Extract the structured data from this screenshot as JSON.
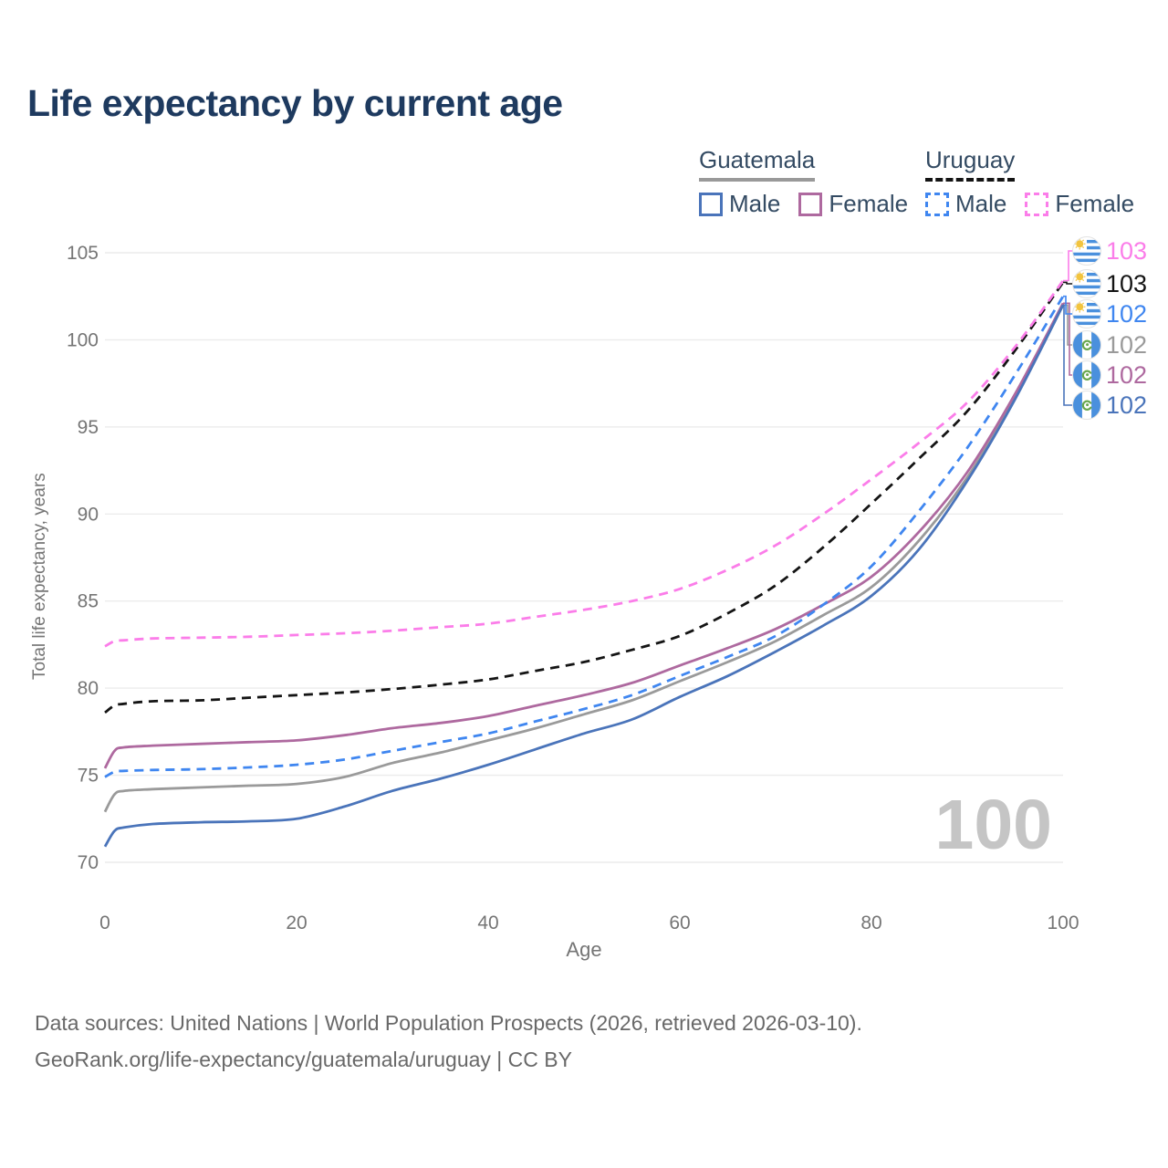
{
  "title": "Life expectancy by current age",
  "watermark": "100",
  "legend": {
    "groups": [
      {
        "label": "Guatemala",
        "underline_style": "solid",
        "underline_color": "#999999",
        "items": [
          {
            "label": "Male",
            "color": "#4a74ba",
            "dash": false
          },
          {
            "label": "Female",
            "color": "#ae699f",
            "dash": false
          }
        ]
      },
      {
        "label": "Uruguay",
        "underline_style": "dashed",
        "underline_color": "#141414",
        "items": [
          {
            "label": "Male",
            "color": "#3f86f0",
            "dash": true
          },
          {
            "label": "Female",
            "color": "#fb7de9",
            "dash": true
          }
        ]
      }
    ]
  },
  "footer": {
    "line1": "Data sources: United Nations | World Population Prospects (2026, retrieved 2026-03-10).",
    "line2": "GeoRank.org/life-expectancy/guatemala/uruguay | CC BY"
  },
  "chart_data": {
    "type": "line",
    "title": "Life expectancy by current age",
    "xlabel": "Age",
    "ylabel": "Total life expectancy, years",
    "xlim": [
      0,
      100
    ],
    "ylim": [
      70,
      105
    ],
    "x_ticks": [
      0,
      20,
      40,
      60,
      80,
      100
    ],
    "y_ticks": [
      70,
      75,
      80,
      85,
      90,
      95,
      100,
      105
    ],
    "grid": "horizontal",
    "legend_position": "top-right",
    "ages": [
      0,
      1,
      2,
      5,
      10,
      15,
      20,
      25,
      30,
      35,
      40,
      45,
      50,
      55,
      60,
      65,
      70,
      75,
      80,
      85,
      90,
      95,
      100
    ],
    "series": [
      {
        "name": "Guatemala (both sexes)",
        "country": "Guatemala",
        "sex": "both",
        "color": "#9a9a9a",
        "dash": "solid",
        "flag": "guatemala",
        "end_label": "102",
        "label_row": 3,
        "values": [
          72.9,
          73.9,
          74.1,
          74.2,
          74.3,
          74.4,
          74.5,
          74.9,
          75.7,
          76.3,
          77.0,
          77.7,
          78.5,
          79.3,
          80.4,
          81.5,
          82.7,
          84.2,
          85.8,
          88.5,
          92.1,
          96.7,
          102.0
        ]
      },
      {
        "name": "Guatemala Female",
        "country": "Guatemala",
        "sex": "female",
        "color": "#ae699f",
        "dash": "solid",
        "flag": "guatemala",
        "end_label": "102",
        "label_row": 4,
        "values": [
          75.4,
          76.4,
          76.6,
          76.7,
          76.8,
          76.9,
          77.0,
          77.3,
          77.7,
          78.0,
          78.4,
          79.0,
          79.6,
          80.3,
          81.3,
          82.3,
          83.4,
          84.8,
          86.4,
          89.0,
          92.4,
          96.9,
          102.1
        ]
      },
      {
        "name": "Guatemala Male",
        "country": "Guatemala",
        "sex": "male",
        "color": "#4a74ba",
        "dash": "solid",
        "flag": "guatemala",
        "end_label": "102",
        "label_row": 5,
        "values": [
          70.9,
          71.8,
          72.0,
          72.2,
          72.3,
          72.35,
          72.5,
          73.2,
          74.1,
          74.8,
          75.6,
          76.5,
          77.4,
          78.2,
          79.5,
          80.7,
          82.1,
          83.6,
          85.3,
          88.0,
          91.9,
          96.6,
          102.0
        ]
      },
      {
        "name": "Uruguay (both sexes)",
        "country": "Uruguay",
        "sex": "both",
        "color": "#141414",
        "dash": "dashed",
        "flag": "uruguay",
        "end_label": "103",
        "label_row": 1,
        "values": [
          78.6,
          79.0,
          79.1,
          79.25,
          79.3,
          79.45,
          79.6,
          79.75,
          79.95,
          80.2,
          80.5,
          81.0,
          81.5,
          82.2,
          83.0,
          84.3,
          85.9,
          88.1,
          90.6,
          93.2,
          95.9,
          99.4,
          103.3
        ]
      },
      {
        "name": "Uruguay Male",
        "country": "Uruguay",
        "sex": "male",
        "color": "#3f86f0",
        "dash": "dashed",
        "flag": "uruguay",
        "end_label": "102",
        "label_row": 2,
        "values": [
          74.9,
          75.2,
          75.25,
          75.3,
          75.35,
          75.45,
          75.6,
          75.9,
          76.4,
          76.9,
          77.4,
          78.1,
          78.8,
          79.6,
          80.7,
          81.8,
          83.0,
          84.8,
          87.0,
          90.2,
          93.8,
          98.0,
          102.5
        ]
      },
      {
        "name": "Uruguay Female",
        "country": "Uruguay",
        "sex": "female",
        "color": "#fb7de9",
        "dash": "dashed",
        "flag": "uruguay",
        "end_label": "103",
        "label_row": 0,
        "values": [
          82.4,
          82.7,
          82.75,
          82.85,
          82.9,
          82.95,
          83.05,
          83.15,
          83.3,
          83.5,
          83.7,
          84.1,
          84.5,
          85.0,
          85.7,
          86.8,
          88.2,
          90.0,
          92.0,
          94.1,
          96.4,
          99.6,
          103.4
        ]
      }
    ]
  }
}
